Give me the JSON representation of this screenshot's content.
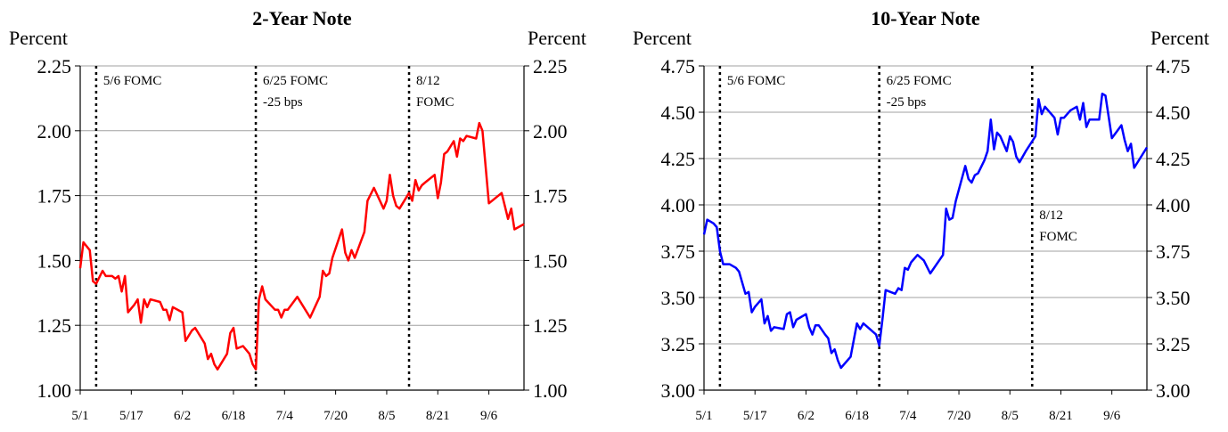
{
  "chart_data": [
    {
      "type": "line",
      "title": "2-Year Note",
      "y_label": "Percent",
      "y2_label": "Percent",
      "grid": true,
      "xlim": [
        "5/1",
        "9/17"
      ],
      "xticks": [
        "5/1",
        "5/17",
        "6/2",
        "6/18",
        "7/4",
        "7/20",
        "8/5",
        "8/21",
        "9/6"
      ],
      "ylim": [
        1,
        2.25
      ],
      "yticks": [
        {
          "value": 1,
          "label": "1.00"
        },
        1.25,
        {
          "value": 1.5,
          "label": "1.50"
        },
        1.75,
        {
          "value": 2,
          "label": "2.00"
        },
        2.25
      ],
      "y2lim": [
        1,
        2.25
      ],
      "y2ticks": [
        {
          "value": 1,
          "label": "1.00"
        },
        1.25,
        {
          "value": 1.5,
          "label": "1.50"
        },
        1.75,
        {
          "value": 2,
          "label": "2.00"
        },
        2.25
      ],
      "events": [
        {
          "x": "5/6",
          "label": [
            "5/6 FOMC"
          ]
        },
        {
          "x": "6/25",
          "label": [
            "6/25 FOMC",
            "-25 bps"
          ]
        },
        {
          "x": "8/12",
          "label": [
            "8/12",
            "FOMC"
          ]
        }
      ],
      "color": "#ff0000",
      "x": [
        "5/1",
        "5/2",
        "5/4",
        "5/5",
        "5/6",
        "5/8",
        "5/9",
        "5/11",
        "5/12",
        "5/13",
        "5/14",
        "5/15",
        "5/16",
        "5/18",
        "5/19",
        "5/20",
        "5/21",
        "5/22",
        "5/23",
        "5/26",
        "5/27",
        "5/28",
        "5/29",
        "5/30",
        "6/2",
        "6/3",
        "6/5",
        "6/6",
        "6/9",
        "6/10",
        "6/11",
        "6/12",
        "6/13",
        "6/16",
        "6/17",
        "6/18",
        "6/19",
        "6/21",
        "6/23",
        "6/24",
        "6/25",
        "6/26",
        "6/27",
        "6/28",
        "7/1",
        "7/2",
        "7/3",
        "7/4",
        "7/5",
        "7/8",
        "7/12",
        "7/15",
        "7/16",
        "7/17",
        "7/18",
        "7/19",
        "7/22",
        "7/23",
        "7/24",
        "7/25",
        "7/26",
        "7/29",
        "7/30",
        "8/1",
        "8/4",
        "8/5",
        "8/6",
        "8/7",
        "8/8",
        "8/9",
        "8/12",
        "8/13",
        "8/14",
        "8/15",
        "8/16",
        "8/17",
        "8/20",
        "8/21",
        "8/22",
        "8/23",
        "8/24",
        "8/26",
        "8/27",
        "8/28",
        "8/29",
        "8/30",
        "9/2",
        "9/3",
        "9/4",
        "9/6",
        "9/10",
        "9/11",
        "9/12",
        "9/13",
        "9/14",
        "9/17"
      ],
      "values": [
        1.47,
        1.57,
        1.54,
        1.42,
        1.41,
        1.46,
        1.44,
        1.44,
        1.43,
        1.44,
        1.38,
        1.44,
        1.3,
        1.33,
        1.35,
        1.26,
        1.35,
        1.32,
        1.35,
        1.34,
        1.31,
        1.31,
        1.27,
        1.32,
        1.3,
        1.19,
        1.23,
        1.24,
        1.18,
        1.12,
        1.14,
        1.1,
        1.08,
        1.14,
        1.22,
        1.24,
        1.16,
        1.17,
        1.14,
        1.1,
        1.08,
        1.35,
        1.4,
        1.35,
        1.31,
        1.31,
        1.28,
        1.31,
        1.31,
        1.36,
        1.28,
        1.36,
        1.46,
        1.44,
        1.45,
        1.51,
        1.62,
        1.53,
        1.5,
        1.54,
        1.51,
        1.61,
        1.73,
        1.78,
        1.7,
        1.73,
        1.83,
        1.75,
        1.71,
        1.7,
        1.76,
        1.73,
        1.81,
        1.77,
        1.79,
        1.8,
        1.83,
        1.74,
        1.8,
        1.91,
        1.92,
        1.96,
        1.9,
        1.97,
        1.96,
        1.98,
        1.97,
        2.03,
        2.0,
        1.72,
        1.76,
        1.71,
        1.66,
        1.7,
        1.62,
        1.64
      ]
    },
    {
      "type": "line",
      "title": "10-Year Note",
      "y_label": "Percent",
      "y2_label": "Percent",
      "grid": true,
      "xlim": [
        "5/1",
        "9/17"
      ],
      "xticks": [
        "5/1",
        "5/17",
        "6/2",
        "6/18",
        "7/4",
        "7/20",
        "8/5",
        "8/21",
        "9/6"
      ],
      "ylim": [
        3,
        4.75
      ],
      "yticks": [
        {
          "value": 3,
          "label": "3.00"
        },
        3.25,
        {
          "value": 3.5,
          "label": "3.50"
        },
        3.75,
        {
          "value": 4,
          "label": "4.00"
        },
        4.25,
        {
          "value": 4.5,
          "label": "4.50"
        },
        4.75
      ],
      "y2lim": [
        3,
        4.75
      ],
      "y2ticks": [
        {
          "value": 3,
          "label": "3.00"
        },
        3.25,
        {
          "value": 3.5,
          "label": "3.50"
        },
        3.75,
        {
          "value": 4,
          "label": "4.00"
        },
        4.25,
        {
          "value": 4.5,
          "label": "4.50"
        },
        4.75
      ],
      "events": [
        {
          "x": "5/6",
          "label": [
            "5/6 FOMC"
          ]
        },
        {
          "x": "6/25",
          "label": [
            "6/25 FOMC",
            "-25 bps"
          ]
        },
        {
          "x": "8/12",
          "label": [
            "8/12",
            "FOMC"
          ]
        }
      ],
      "color": "#0000ff",
      "x": [
        "5/1",
        "5/2",
        "5/4",
        "5/5",
        "5/6",
        "5/7",
        "5/9",
        "5/11",
        "5/12",
        "5/14",
        "5/15",
        "5/16",
        "5/17",
        "5/19",
        "5/20",
        "5/21",
        "5/22",
        "5/23",
        "5/26",
        "5/27",
        "5/28",
        "5/29",
        "5/30",
        "6/2",
        "6/3",
        "6/4",
        "6/5",
        "6/6",
        "6/8",
        "6/9",
        "6/10",
        "6/11",
        "6/12",
        "6/13",
        "6/16",
        "6/18",
        "6/19",
        "6/20",
        "6/24",
        "6/25",
        "6/26",
        "6/27",
        "6/30",
        "7/1",
        "7/2",
        "7/3",
        "7/4",
        "7/5",
        "7/7",
        "7/9",
        "7/11",
        "7/15",
        "7/16",
        "7/17",
        "7/18",
        "7/19",
        "7/22",
        "7/23",
        "7/24",
        "7/25",
        "7/26",
        "7/28",
        "7/29",
        "7/30",
        "7/31",
        "8/1",
        "8/2",
        "8/4",
        "8/5",
        "8/6",
        "8/7",
        "8/8",
        "8/10",
        "8/13",
        "8/14",
        "8/15",
        "8/16",
        "8/19",
        "8/20",
        "8/21",
        "8/22",
        "8/24",
        "8/26",
        "8/27",
        "8/28",
        "8/29",
        "8/30",
        "9/2",
        "9/3",
        "9/4",
        "9/6",
        "9/9",
        "9/10",
        "9/11",
        "9/12",
        "9/13",
        "9/17"
      ],
      "values": [
        3.84,
        3.92,
        3.9,
        3.88,
        3.75,
        3.68,
        3.68,
        3.66,
        3.64,
        3.52,
        3.53,
        3.42,
        3.45,
        3.49,
        3.36,
        3.4,
        3.32,
        3.34,
        3.33,
        3.41,
        3.42,
        3.34,
        3.38,
        3.41,
        3.34,
        3.3,
        3.35,
        3.35,
        3.3,
        3.28,
        3.2,
        3.22,
        3.16,
        3.12,
        3.18,
        3.36,
        3.33,
        3.36,
        3.3,
        3.24,
        3.38,
        3.54,
        3.52,
        3.55,
        3.54,
        3.66,
        3.65,
        3.69,
        3.73,
        3.7,
        3.63,
        3.73,
        3.98,
        3.92,
        3.93,
        4.02,
        4.21,
        4.14,
        4.12,
        4.16,
        4.17,
        4.24,
        4.29,
        4.46,
        4.3,
        4.39,
        4.37,
        4.29,
        4.37,
        4.34,
        4.26,
        4.23,
        4.29,
        4.37,
        4.57,
        4.49,
        4.53,
        4.47,
        4.38,
        4.47,
        4.47,
        4.51,
        4.53,
        4.46,
        4.55,
        4.42,
        4.46,
        4.46,
        4.6,
        4.59,
        4.36,
        4.43,
        4.35,
        4.29,
        4.33,
        4.2,
        4.31
      ]
    }
  ]
}
